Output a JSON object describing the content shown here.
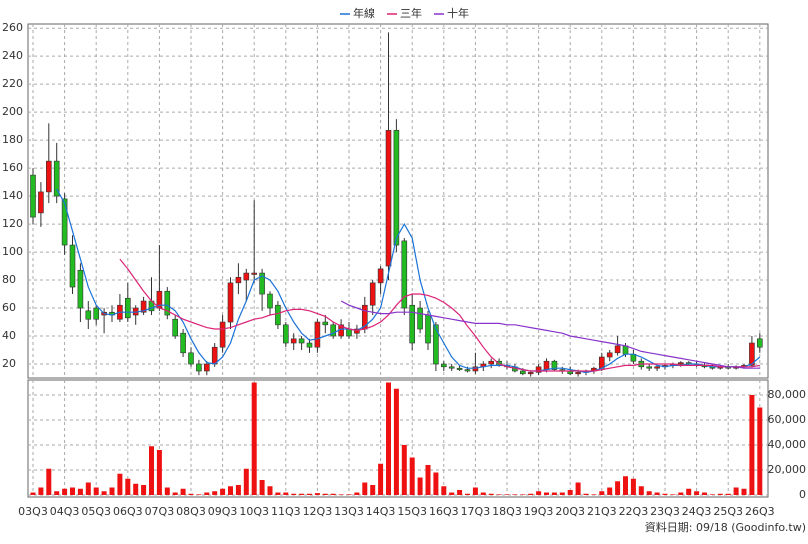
{
  "chart_data": {
    "type": "candlestick",
    "categories": [
      "03Q3",
      null,
      null,
      null,
      "04Q3",
      null,
      null,
      null,
      "05Q3",
      null,
      null,
      null,
      "06Q3",
      null,
      null,
      null,
      "07Q3",
      null,
      null,
      null,
      "08Q3",
      null,
      null,
      null,
      "09Q3",
      null,
      null,
      null,
      "10Q3",
      null,
      null,
      null,
      "11Q3",
      null,
      null,
      null,
      "12Q3",
      null,
      null,
      null,
      "13Q3",
      null,
      null,
      null,
      "14Q3",
      null,
      null,
      null,
      "15Q3",
      null,
      null,
      null,
      "16Q3",
      null,
      null,
      null,
      "17Q3",
      null,
      null,
      null,
      "18Q3",
      null,
      null,
      null,
      "19Q3",
      null,
      null,
      null,
      "20Q3",
      null,
      null,
      null,
      "21Q3",
      null,
      null,
      null,
      "22Q3",
      null,
      null,
      null,
      "23Q3",
      null,
      null,
      null,
      "24Q3",
      null,
      null,
      null,
      "25Q3",
      null,
      null,
      null,
      "26Q3"
    ],
    "open": [
      155,
      128,
      143,
      165,
      138,
      105,
      87,
      58,
      60,
      55,
      57,
      52,
      67,
      55,
      57,
      65,
      60,
      72,
      52,
      42,
      28,
      20,
      15,
      20,
      32,
      50,
      78,
      80,
      84,
      85,
      70,
      62,
      48,
      35,
      38,
      35,
      32,
      50,
      48,
      40,
      45,
      42,
      45,
      62,
      78,
      90,
      187,
      108,
      62,
      60,
      55,
      48,
      20,
      18,
      17,
      16,
      15,
      18,
      20,
      22,
      19,
      18,
      15,
      13,
      14,
      16,
      22,
      16,
      15,
      13,
      14,
      15,
      17,
      25,
      28,
      33,
      27,
      22,
      18,
      17,
      18,
      19,
      20,
      21,
      20,
      19,
      18,
      17,
      18,
      17,
      18,
      19,
      38
    ],
    "high": [
      160,
      150,
      192,
      178,
      142,
      112,
      92,
      65,
      62,
      60,
      62,
      70,
      78,
      62,
      68,
      82,
      105,
      75,
      55,
      45,
      32,
      23,
      22,
      35,
      55,
      82,
      92,
      88,
      137,
      88,
      72,
      65,
      50,
      42,
      40,
      38,
      52,
      55,
      50,
      52,
      50,
      48,
      68,
      80,
      90,
      257,
      195,
      110,
      70,
      65,
      58,
      50,
      22,
      20,
      19,
      18,
      28,
      22,
      24,
      24,
      22,
      20,
      17,
      15,
      20,
      24,
      23,
      18,
      18,
      16,
      16,
      18,
      28,
      30,
      40,
      35,
      30,
      24,
      20,
      19,
      20,
      21,
      22,
      22,
      22,
      21,
      20,
      19,
      20,
      19,
      20,
      40,
      42
    ],
    "low": [
      120,
      118,
      135,
      135,
      98,
      70,
      50,
      45,
      48,
      42,
      50,
      50,
      50,
      48,
      55,
      55,
      58,
      52,
      38,
      25,
      18,
      12,
      12,
      18,
      28,
      45,
      70,
      65,
      78,
      58,
      55,
      45,
      32,
      30,
      30,
      28,
      28,
      42,
      38,
      38,
      38,
      38,
      42,
      55,
      70,
      80,
      100,
      55,
      30,
      42,
      30,
      15,
      15,
      15,
      15,
      14,
      13,
      15,
      17,
      18,
      16,
      14,
      12,
      11,
      12,
      14,
      15,
      13,
      12,
      11,
      12,
      13,
      15,
      22,
      26,
      25,
      20,
      16,
      15,
      15,
      16,
      17,
      18,
      19,
      18,
      17,
      16,
      16,
      16,
      16,
      17,
      18,
      28
    ],
    "close": [
      125,
      143,
      165,
      140,
      105,
      75,
      60,
      52,
      52,
      57,
      55,
      62,
      53,
      60,
      65,
      58,
      72,
      55,
      40,
      28,
      20,
      15,
      20,
      32,
      50,
      78,
      82,
      85,
      85,
      70,
      60,
      48,
      35,
      38,
      35,
      32,
      50,
      48,
      40,
      48,
      40,
      45,
      62,
      78,
      88,
      187,
      105,
      60,
      35,
      45,
      35,
      20,
      18,
      17,
      16,
      15,
      18,
      20,
      22,
      19,
      18,
      15,
      13,
      14,
      18,
      22,
      16,
      15,
      13,
      14,
      15,
      17,
      25,
      28,
      33,
      27,
      22,
      18,
      17,
      18,
      19,
      20,
      21,
      20,
      19,
      18,
      17,
      18,
      17,
      18,
      19,
      35,
      32
    ],
    "up_color": "#ee1111",
    "down_color": "#22bb22",
    "series": [
      {
        "name": "年線",
        "color": "#1a73d9",
        "values": [
          null,
          null,
          null,
          145,
          135,
          115,
          95,
          75,
          62,
          56,
          55,
          57,
          57,
          57,
          58,
          60,
          62,
          62,
          58,
          50,
          38,
          28,
          21,
          20,
          25,
          35,
          52,
          65,
          80,
          83,
          80,
          72,
          60,
          50,
          42,
          37,
          38,
          40,
          42,
          45,
          45,
          44,
          47,
          52,
          60,
          85,
          110,
          120,
          110,
          80,
          60,
          45,
          35,
          25,
          19,
          17,
          17,
          18,
          19,
          19,
          19,
          18,
          16,
          15,
          15,
          16,
          17,
          17,
          16,
          15,
          14,
          15,
          17,
          20,
          24,
          27,
          27,
          25,
          22,
          19,
          18,
          19,
          19,
          20,
          20,
          19,
          18,
          18,
          18,
          18,
          18,
          20,
          25
        ]
      },
      {
        "name": "三年",
        "color": "#dd2277",
        "values": [
          null,
          null,
          null,
          null,
          null,
          null,
          null,
          null,
          null,
          null,
          null,
          95,
          88,
          80,
          72,
          65,
          60,
          58,
          55,
          52,
          50,
          48,
          46,
          45,
          45,
          46,
          48,
          50,
          52,
          53,
          55,
          56,
          58,
          59,
          59,
          58,
          56,
          54,
          50,
          47,
          45,
          44,
          45,
          47,
          50,
          55,
          62,
          68,
          70,
          70,
          69,
          67,
          64,
          60,
          55,
          47,
          40,
          32,
          25,
          20,
          18,
          17,
          16,
          15,
          15,
          15,
          15,
          15,
          15,
          15,
          15,
          15,
          16,
          17,
          18,
          19,
          19,
          20,
          20,
          20,
          20,
          20,
          19,
          19,
          19,
          19,
          19,
          18,
          18,
          18,
          18,
          18,
          19
        ]
      },
      {
        "name": "十年",
        "color": "#8833cc",
        "values": [
          null,
          null,
          null,
          null,
          null,
          null,
          null,
          null,
          null,
          null,
          null,
          null,
          null,
          null,
          null,
          null,
          null,
          null,
          null,
          null,
          null,
          null,
          null,
          null,
          null,
          null,
          null,
          null,
          null,
          null,
          null,
          null,
          null,
          null,
          null,
          null,
          null,
          null,
          null,
          65,
          62,
          60,
          58,
          57,
          56,
          56,
          57,
          57,
          57,
          56,
          55,
          54,
          53,
          52,
          51,
          50,
          49,
          49,
          49,
          49,
          48,
          48,
          47,
          46,
          45,
          44,
          43,
          42,
          40,
          39,
          38,
          37,
          36,
          35,
          34,
          33,
          31,
          29,
          28,
          27,
          26,
          25,
          24,
          23,
          22,
          21,
          20,
          19,
          18,
          18,
          17,
          17,
          17
        ]
      }
    ],
    "ylim": [
      10,
      263
    ],
    "yticks": [
      20,
      40,
      60,
      80,
      100,
      120,
      140,
      160,
      180,
      200,
      220,
      240,
      260
    ],
    "grid": true,
    "volume": {
      "color": "#ee1111",
      "ylim": [
        0,
        92000
      ],
      "yticks": [
        0,
        {
          "value": 20000,
          "label": "20,000"
        },
        {
          "value": 40000,
          "label": "40,000"
        },
        {
          "value": 60000,
          "label": "60,000"
        },
        {
          "value": 80000,
          "label": "80,000"
        }
      ],
      "values": [
        2000,
        6000,
        21000,
        3000,
        5000,
        6000,
        5000,
        10000,
        6000,
        3000,
        6000,
        17000,
        13000,
        9000,
        8000,
        39000,
        36000,
        6000,
        2000,
        5000,
        1000,
        500,
        2000,
        3000,
        5000,
        7000,
        8000,
        21000,
        90000,
        12000,
        7000,
        2000,
        2000,
        1000,
        1000,
        1000,
        1500,
        1000,
        1000,
        500,
        500,
        2000,
        10000,
        8000,
        25000,
        90000,
        85000,
        40000,
        30000,
        14000,
        24000,
        18000,
        7000,
        2000,
        4000,
        1000,
        6000,
        2000,
        1000,
        500,
        500,
        500,
        500,
        1000,
        3000,
        2000,
        2000,
        2000,
        4000,
        10000,
        1000,
        500,
        3000,
        6000,
        11000,
        15000,
        13000,
        7000,
        3000,
        2000,
        1000,
        500,
        2000,
        5000,
        3000,
        2000,
        500,
        1000,
        1000,
        6000,
        5000,
        80000,
        70000
      ]
    },
    "source_note": "資料日期: 09/18 (Goodinfo.tw)"
  }
}
